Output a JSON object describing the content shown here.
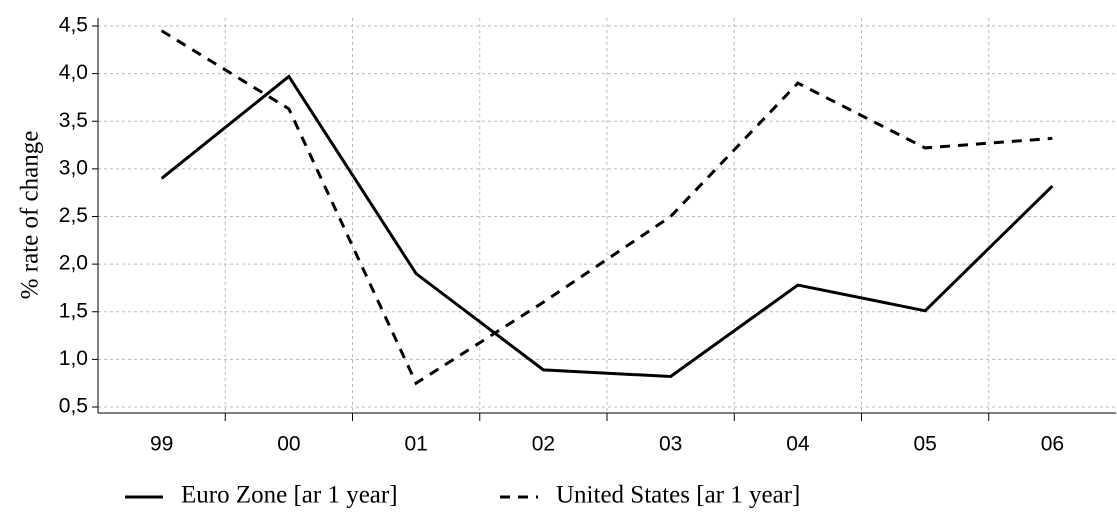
{
  "chart_data": {
    "type": "line",
    "y_label": "% rate of change",
    "categories": [
      "99",
      "00",
      "01",
      "02",
      "03",
      "04",
      "05",
      "06"
    ],
    "series": [
      {
        "name": "Euro Zone [ar 1 year]",
        "color": "#000000",
        "dash": "solid",
        "values": [
          2.9,
          3.97,
          1.9,
          0.89,
          0.82,
          1.78,
          1.51,
          2.82
        ]
      },
      {
        "name": "United States [ar 1 year]",
        "color": "#000000",
        "dash": "dashed",
        "values": [
          4.45,
          3.63,
          0.75,
          1.6,
          2.5,
          3.9,
          3.22,
          3.32
        ]
      }
    ],
    "ylim": [
      0.5,
      4.5
    ],
    "yticks": [
      {
        "value": 0.5,
        "label": "0,5"
      },
      {
        "value": 1.0,
        "label": "1,0"
      },
      {
        "value": 1.5,
        "label": "1,5"
      },
      {
        "value": 2.0,
        "label": "2,0"
      },
      {
        "value": 2.5,
        "label": "2,5"
      },
      {
        "value": 3.0,
        "label": "3,0"
      },
      {
        "value": 3.5,
        "label": "3,5"
      },
      {
        "value": 4.0,
        "label": "4,0"
      },
      {
        "value": 4.5,
        "label": "4,5"
      }
    ],
    "grid": true,
    "legend": "bottom"
  }
}
